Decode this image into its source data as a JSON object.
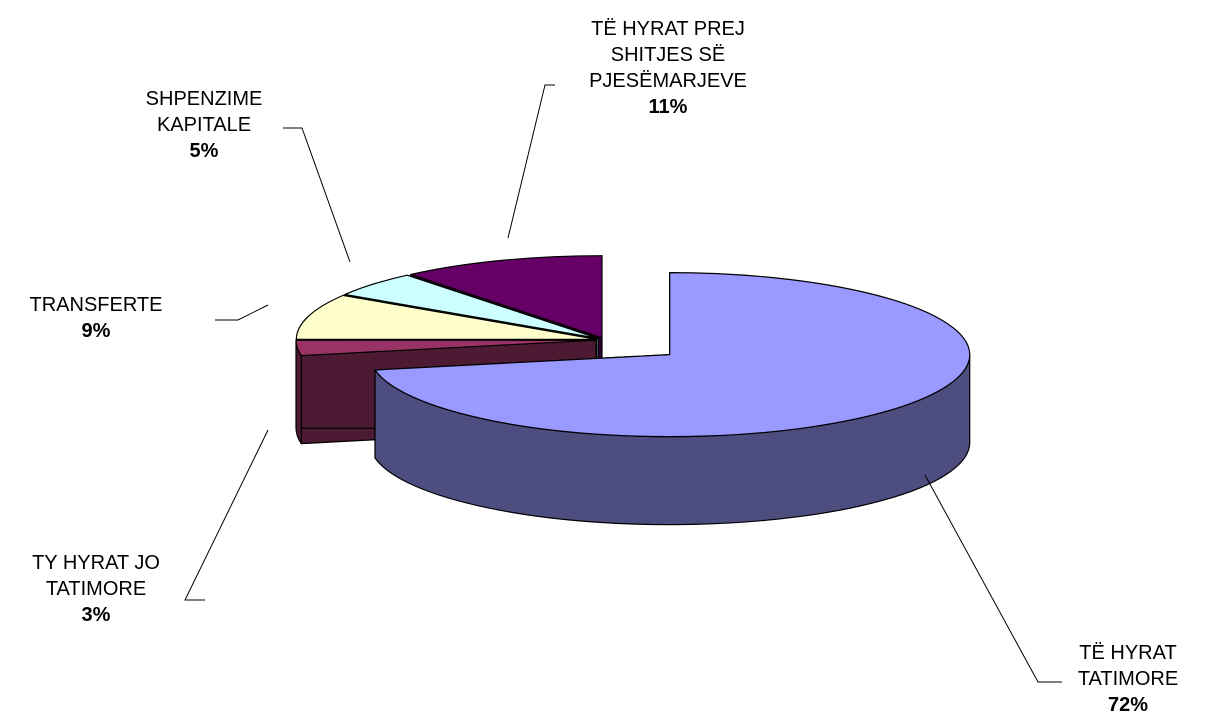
{
  "chart_data": {
    "type": "pie",
    "categories": [
      "TË HYRAT TATIMORE",
      "TY HYRAT JO TATIMORE",
      "TRANSFERTE",
      "SHPENZIME KAPITALE",
      "TË HYRAT PREJ SHITJES SË PJESËMARJEVE"
    ],
    "values": [
      72,
      3,
      9,
      5,
      11
    ],
    "value_labels": [
      "72%",
      "3%",
      "9%",
      "5%",
      "11%"
    ],
    "colors": [
      "#9999ff",
      "#993366",
      "#ffffcc",
      "#ccffff",
      "#660066"
    ]
  }
}
